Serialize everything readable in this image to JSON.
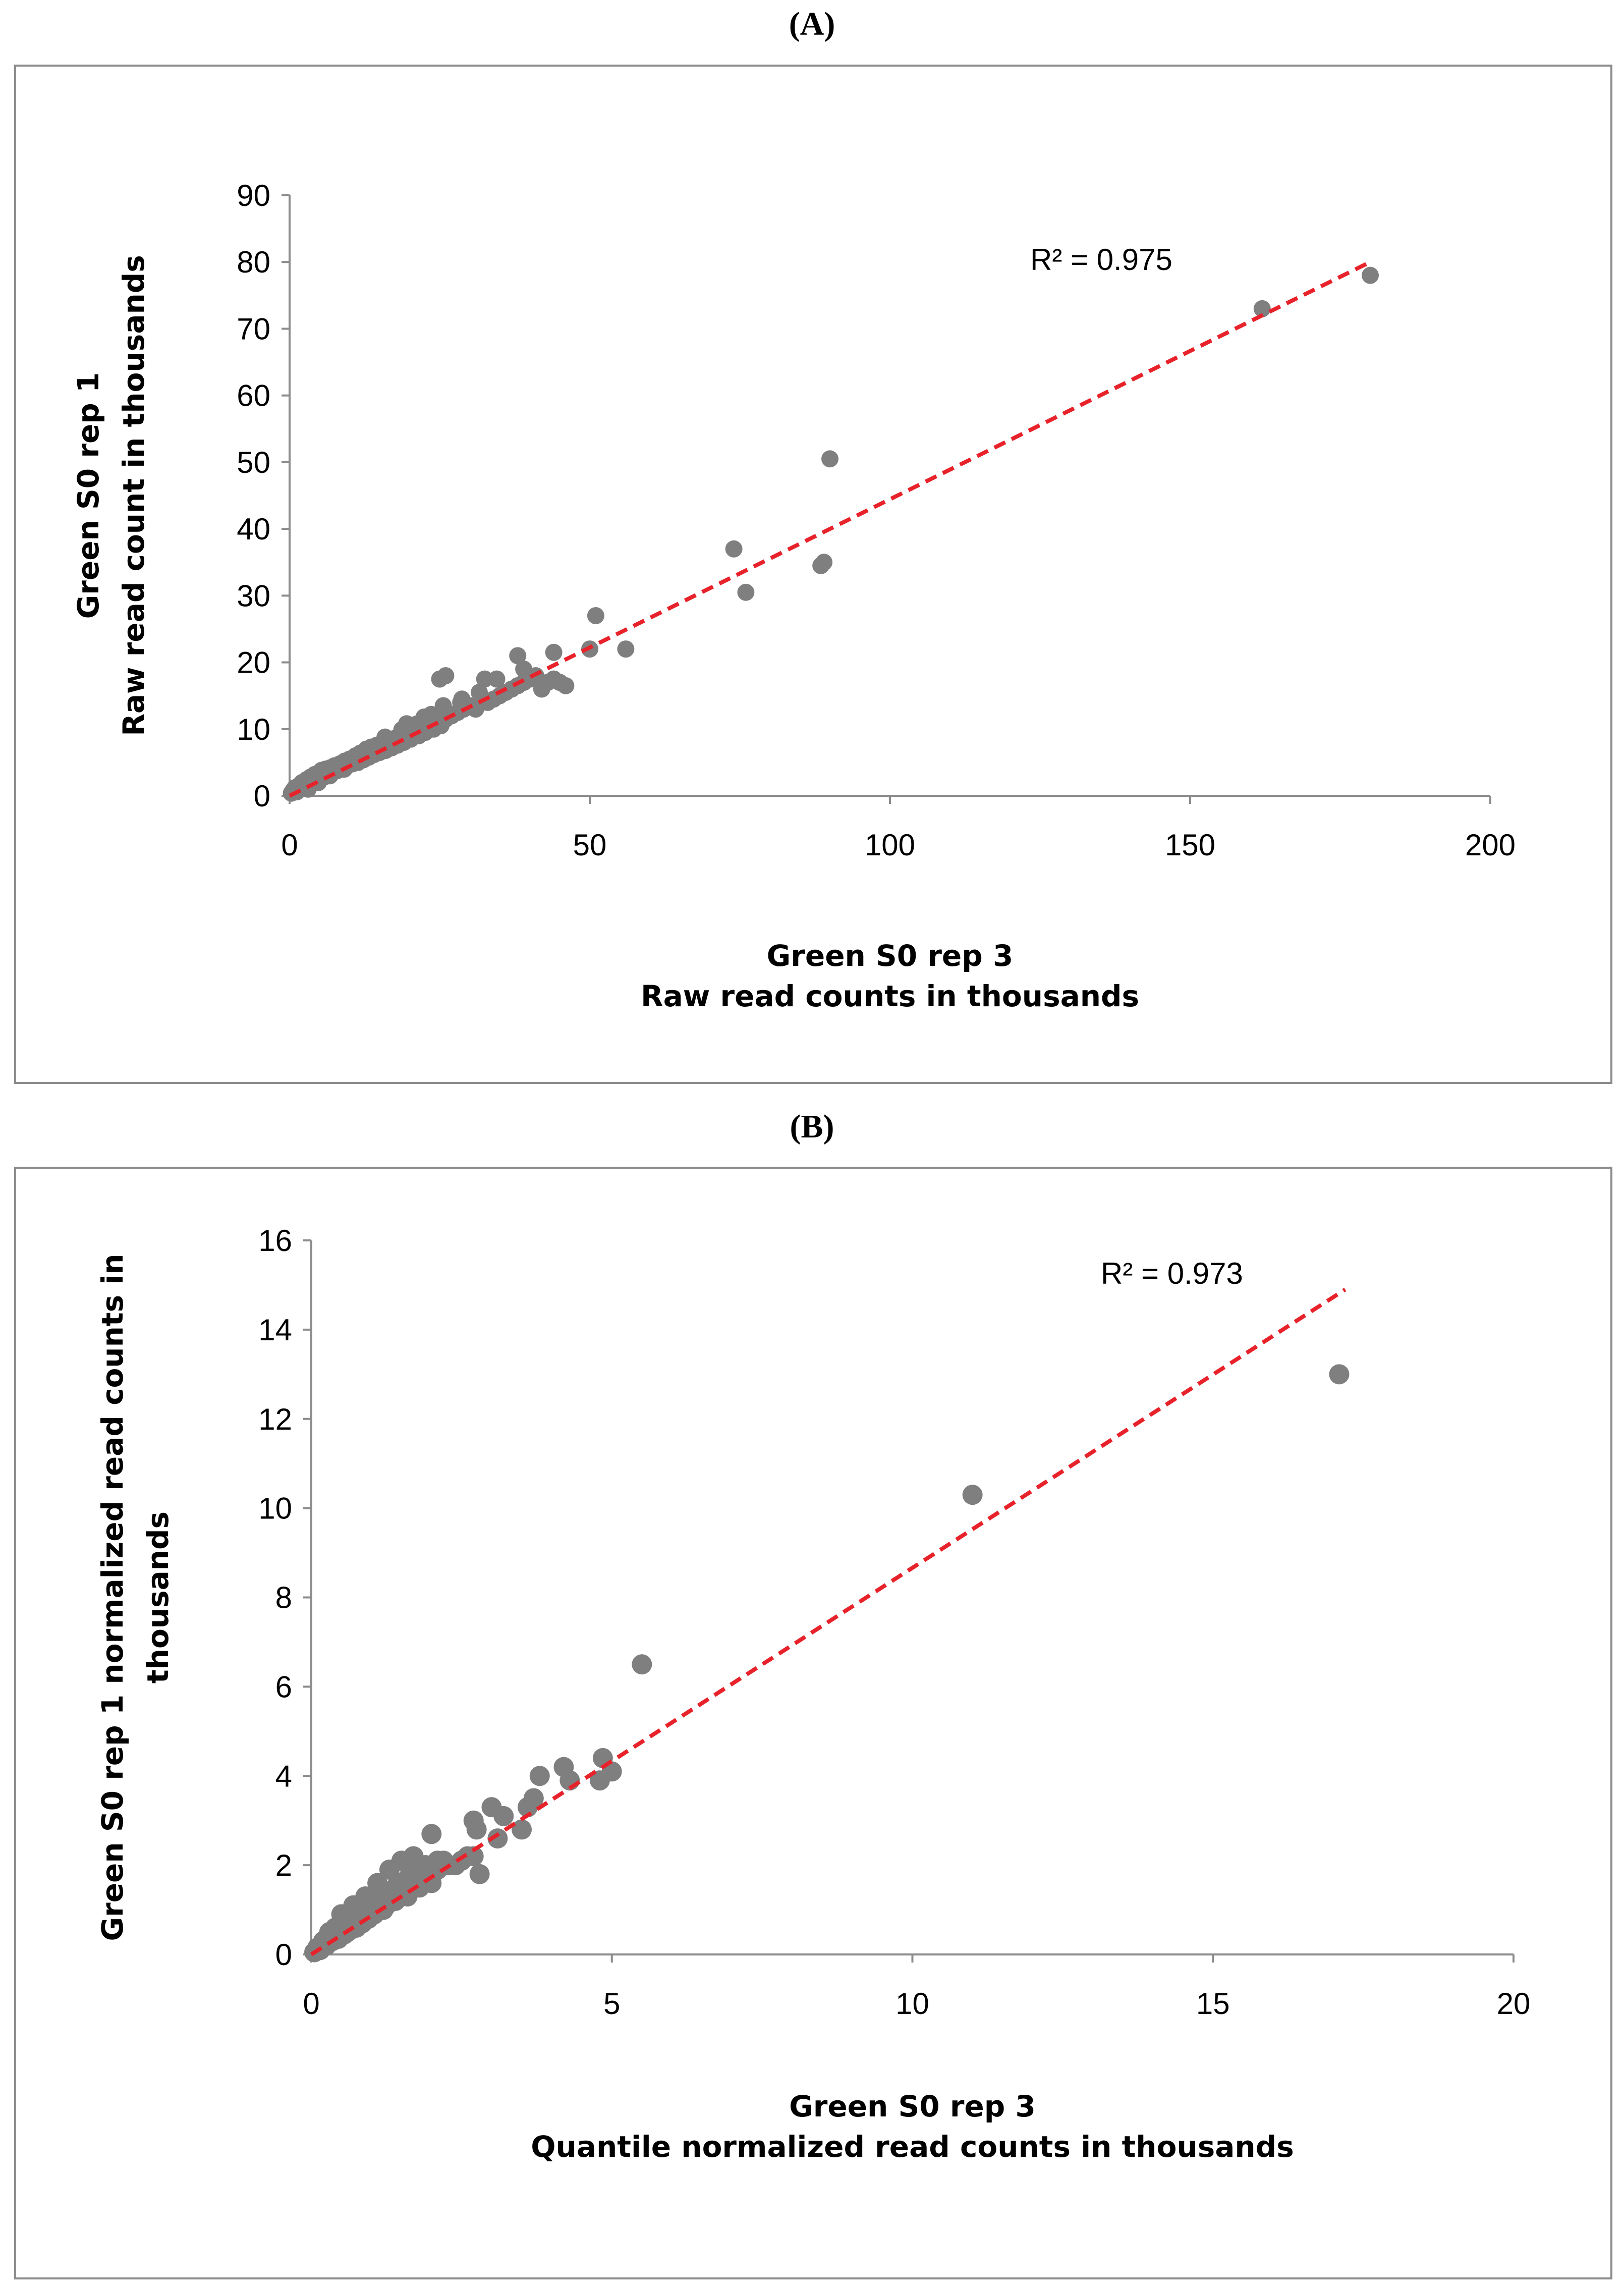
{
  "panels": {
    "a_label": "(A)",
    "b_label": "(B)"
  },
  "colors": {
    "points": "#7f7f7f",
    "trendline": "#e8222a",
    "axis": "#8c8c8c",
    "frame": "#8c8c8c"
  },
  "chart_data": [
    {
      "type": "scatter",
      "panel": "(A)",
      "title": "",
      "xlabel_lines": [
        "Green S0 rep 3",
        "Raw read counts  in thousands"
      ],
      "ylabel_lines": [
        "Green S0 rep 1",
        "Raw read count in thousands"
      ],
      "xlim": [
        0,
        200
      ],
      "ylim": [
        0,
        90
      ],
      "xticks": [
        0,
        50,
        100,
        150,
        200
      ],
      "yticks": [
        0,
        10,
        20,
        30,
        40,
        50,
        60,
        70,
        80,
        90
      ],
      "grid": false,
      "trendline": {
        "style": "dashed",
        "color": "red",
        "x": [
          0,
          180
        ],
        "y": [
          0,
          80
        ]
      },
      "r2_text": "R² = 0.975",
      "series": [
        {
          "x": [
            0.3,
            0.6,
            0.9,
            1.2,
            1.5,
            1.8,
            2.1,
            2.5,
            2.8,
            3.2,
            3.5,
            3.9,
            4.2,
            4.6,
            5.0,
            5.3,
            5.7,
            6.0,
            6.4,
            6.8,
            7.2,
            7.5,
            8.0,
            8.4,
            8.8,
            9.2,
            9.6,
            10.0,
            10.5,
            11.0,
            11.4,
            11.8,
            12.3,
            12.8,
            13.2,
            13.6,
            14.1,
            14.6,
            15.0,
            15.5,
            16.0,
            16.5,
            17.0,
            17.5,
            18.0,
            18.5,
            19.0,
            19.6,
            20.2,
            20.8,
            21.5,
            22.0,
            22.6,
            23.2,
            24.0,
            24.5,
            25.2,
            26.0,
            27.0,
            28.0,
            29.0,
            30.0,
            31.0,
            32.0,
            33.0,
            34.0,
            35.0,
            36.0,
            37.0,
            38.0,
            39.0,
            40.0,
            41.0,
            42.0,
            43.0,
            44.0,
            45.0,
            5.2,
            7.8,
            10.3,
            13.4,
            15.9,
            18.7,
            21.3,
            23.6,
            3.1,
            4.8,
            6.7,
            9.1,
            11.7,
            14.4,
            16.8,
            19.5,
            22.4,
            25.6,
            28.7,
            31.6,
            25.0,
            26.0,
            28.5,
            32.5,
            34.5,
            39.0,
            38.0,
            44.0,
            46.0,
            50.0,
            51.0,
            56.0,
            74.0,
            76.0,
            88.5,
            89.0,
            90.0,
            162.0,
            180.0
          ],
          "y": [
            0.4,
            0.8,
            1.2,
            0.6,
            1.5,
            1.0,
            2.0,
            1.4,
            2.4,
            1.8,
            2.8,
            2.2,
            3.2,
            2.5,
            3.0,
            3.8,
            2.8,
            4.0,
            3.3,
            4.2,
            3.5,
            4.5,
            3.8,
            4.8,
            4.2,
            5.2,
            4.5,
            5.5,
            4.8,
            6.0,
            5.0,
            6.4,
            5.4,
            7.0,
            5.8,
            7.3,
            6.2,
            7.6,
            6.5,
            8.0,
            6.8,
            8.4,
            7.2,
            8.6,
            7.6,
            9.0,
            8.0,
            9.2,
            8.5,
            9.6,
            9.0,
            10.2,
            9.5,
            10.5,
            10.0,
            11.0,
            10.5,
            11.5,
            12.0,
            12.5,
            13.0,
            13.5,
            13.0,
            14.0,
            14.0,
            14.5,
            15.0,
            15.5,
            16.0,
            16.5,
            17.0,
            17.5,
            18.0,
            16.0,
            17.0,
            17.5,
            17.0,
            2.6,
            4.1,
            5.0,
            6.6,
            8.8,
            9.9,
            10.8,
            12.2,
            1.0,
            2.0,
            3.0,
            4.0,
            5.6,
            7.5,
            8.3,
            10.8,
            11.8,
            13.5,
            14.5,
            15.5,
            17.5,
            18.0,
            14.0,
            17.5,
            17.5,
            19.0,
            21.0,
            21.5,
            16.5,
            22.0,
            27.0,
            22.0,
            37.0,
            30.5,
            34.5,
            35.0,
            50.5,
            73.0,
            78.0
          ]
        }
      ]
    },
    {
      "type": "scatter",
      "panel": "(B)",
      "title": "",
      "xlabel_lines": [
        "Green S0 rep 3",
        "Quantile normalized read counts in thousands"
      ],
      "ylabel_lines": [
        "Green S0 rep 1 normalized read counts in",
        "thousands"
      ],
      "xlim": [
        0,
        20
      ],
      "ylim": [
        0,
        16
      ],
      "xticks": [
        0,
        5,
        10,
        15,
        20
      ],
      "yticks": [
        0,
        2,
        4,
        6,
        8,
        10,
        12,
        14,
        16
      ],
      "grid": false,
      "trendline": {
        "style": "dashed",
        "color": "red",
        "x": [
          0,
          17.2
        ],
        "y": [
          0,
          14.9
        ]
      },
      "r2_text": "R² = 0.973",
      "series": [
        {
          "x": [
            0.05,
            0.1,
            0.15,
            0.2,
            0.25,
            0.3,
            0.35,
            0.4,
            0.45,
            0.5,
            0.55,
            0.6,
            0.65,
            0.7,
            0.75,
            0.8,
            0.85,
            0.9,
            0.95,
            1.0,
            1.05,
            1.1,
            1.15,
            1.2,
            1.25,
            1.3,
            1.35,
            1.4,
            1.45,
            1.5,
            1.55,
            1.6,
            1.65,
            1.7,
            1.75,
            1.8,
            1.85,
            1.9,
            1.95,
            2.0,
            2.1,
            2.2,
            2.3,
            2.4,
            2.5,
            2.6,
            2.7,
            2.8,
            0.3,
            0.5,
            0.7,
            0.9,
            1.1,
            1.3,
            1.5,
            1.7,
            1.9,
            2.1,
            0.2,
            0.4,
            0.6,
            0.8,
            1.0,
            1.2,
            1.4,
            1.6,
            1.8,
            2.0,
            2.0,
            2.7,
            2.75,
            3.0,
            3.1,
            3.2,
            3.5,
            3.6,
            3.7,
            3.8,
            4.2,
            4.3,
            4.8,
            4.85,
            5.0,
            5.5,
            11.0,
            17.1
          ],
          "y": [
            0.05,
            0.15,
            0.1,
            0.3,
            0.2,
            0.4,
            0.3,
            0.5,
            0.35,
            0.6,
            0.45,
            0.7,
            0.55,
            0.8,
            0.6,
            0.9,
            0.7,
            1.0,
            0.8,
            1.1,
            0.9,
            1.2,
            1.0,
            1.3,
            1.1,
            1.4,
            1.2,
            1.5,
            1.3,
            1.6,
            1.4,
            1.7,
            1.5,
            1.8,
            1.6,
            1.9,
            1.7,
            2.0,
            1.8,
            2.0,
            1.9,
            2.1,
            2.0,
            2.0,
            2.1,
            2.2,
            2.2,
            1.8,
            0.5,
            0.9,
            1.1,
            1.3,
            1.6,
            1.9,
            2.1,
            2.2,
            2.0,
            2.1,
            0.3,
            0.6,
            0.5,
            0.8,
            0.9,
            1.0,
            1.2,
            1.3,
            1.5,
            1.6,
            2.7,
            3.0,
            2.8,
            3.3,
            2.6,
            3.1,
            2.8,
            3.3,
            3.5,
            4.0,
            4.2,
            3.9,
            3.9,
            4.4,
            4.1,
            6.5,
            10.3,
            13.0
          ]
        }
      ]
    }
  ]
}
